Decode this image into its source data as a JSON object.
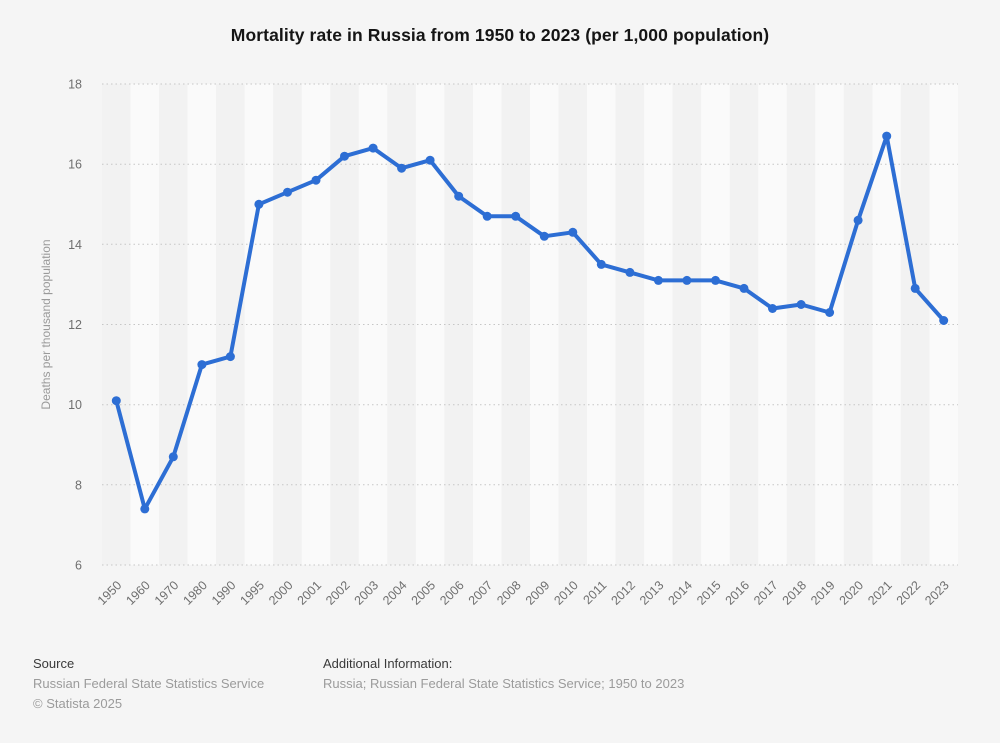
{
  "title": "Mortality rate in Russia from 1950 to 2023 (per 1,000 population)",
  "chart_data": {
    "type": "line",
    "title": "Mortality rate in Russia from 1950 to 2023 (per 1,000 population)",
    "categories": [
      "1950",
      "1960",
      "1970",
      "1980",
      "1990",
      "1995",
      "2000",
      "2001",
      "2002",
      "2003",
      "2004",
      "2005",
      "2006",
      "2007",
      "2008",
      "2009",
      "2010",
      "2011",
      "2012",
      "2013",
      "2014",
      "2015",
      "2016",
      "2017",
      "2018",
      "2019",
      "2020",
      "2021",
      "2022",
      "2023"
    ],
    "values": [
      10.1,
      7.4,
      8.7,
      11.0,
      11.2,
      15.0,
      15.3,
      15.6,
      16.2,
      16.4,
      15.9,
      16.1,
      15.2,
      14.7,
      14.7,
      14.2,
      14.3,
      13.5,
      13.3,
      13.1,
      13.1,
      13.1,
      12.9,
      12.4,
      12.5,
      12.3,
      14.6,
      16.7,
      12.9,
      12.1
    ],
    "xlabel": "",
    "ylabel": "Deaths per thousand population",
    "ylim": [
      6,
      18
    ],
    "yticks": [
      6,
      8,
      10,
      12,
      14,
      16,
      18
    ],
    "grid": "horizontal-dotted",
    "legend": "none",
    "line_color": "#2d6ed4",
    "marker_color": "#2d6ed4",
    "gridline_color": "#c6c6c6",
    "band_color_odd": "#f2f2f2",
    "band_color_even": "#fafafa",
    "tick_label_color": "#6f6f6f",
    "axis_title_color": "#9a9a9a"
  },
  "footer": {
    "source_label": "Source",
    "source_name": "Russian Federal State Statistics Service",
    "copyright": "© Statista 2025",
    "additional_label": "Additional Information:",
    "additional_text": "Russia; Russian Federal State Statistics Service; 1950 to 2023"
  }
}
